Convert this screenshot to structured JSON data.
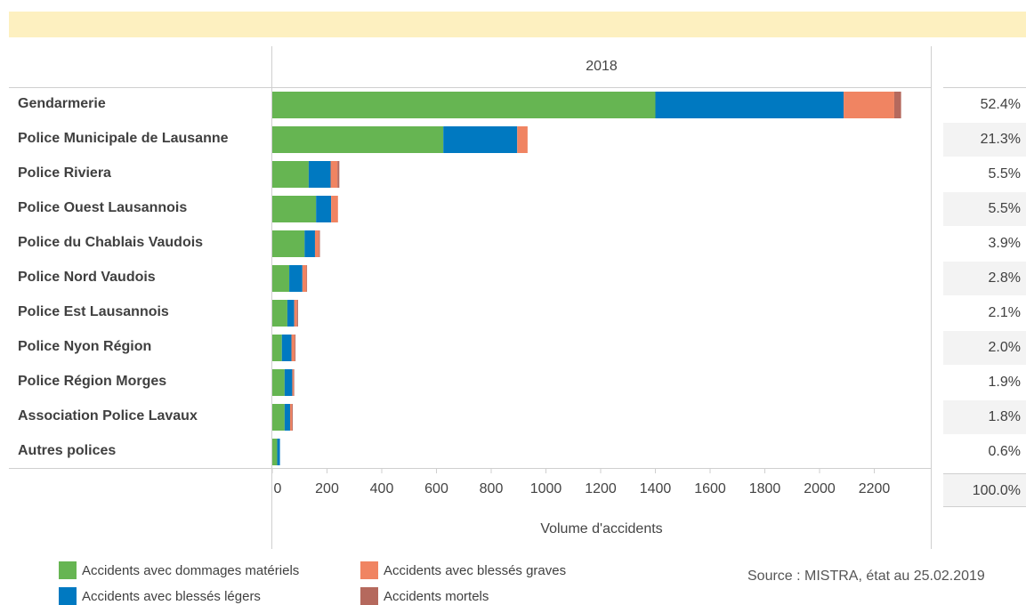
{
  "chart_data": {
    "type": "bar",
    "orientation": "horizontal",
    "stacked": true,
    "column_header": "2018",
    "xlabel": "Volume d'accidents",
    "xlim": [
      0,
      2400
    ],
    "xticks": [
      0,
      200,
      400,
      600,
      800,
      1000,
      1200,
      1400,
      1600,
      1800,
      2000,
      2200
    ],
    "categories": [
      "Gendarmerie",
      "Police Municipale de Lausanne",
      "Police Riviera",
      "Police Ouest Lausannois",
      "Police du Chablais Vaudois",
      "Police Nord Vaudois",
      "Police Est Lausannois",
      "Police Nyon Région",
      "Police Région Morges",
      "Association Police Lavaux",
      "Autres polices"
    ],
    "series": [
      {
        "name": "Accidents avec dommages matériels",
        "color": "#66b552",
        "values": [
          1400,
          625,
          133,
          160,
          118,
          62,
          55,
          35,
          45,
          45,
          18
        ]
      },
      {
        "name": "Accidents avec blessés légers",
        "color": "#0079c1",
        "values": [
          688,
          270,
          80,
          55,
          38,
          48,
          25,
          35,
          28,
          20,
          10
        ]
      },
      {
        "name": "Accidents avec blessés graves",
        "color": "#f08462",
        "values": [
          185,
          38,
          25,
          25,
          15,
          15,
          10,
          12,
          5,
          7,
          0
        ]
      },
      {
        "name": "Accidents mortels",
        "color": "#b5695d",
        "values": [
          25,
          0,
          7,
          0,
          3,
          2,
          4,
          3,
          2,
          3,
          0
        ]
      }
    ],
    "percentages": [
      "52.4%",
      "21.3%",
      "5.5%",
      "5.5%",
      "3.9%",
      "2.8%",
      "2.1%",
      "2.0%",
      "1.9%",
      "1.8%",
      "0.6%"
    ],
    "total_percentage": "100.0%",
    "legend_position": "bottom-left",
    "grid": false
  },
  "source": "Source : MISTRA, état au 25.02.2019"
}
